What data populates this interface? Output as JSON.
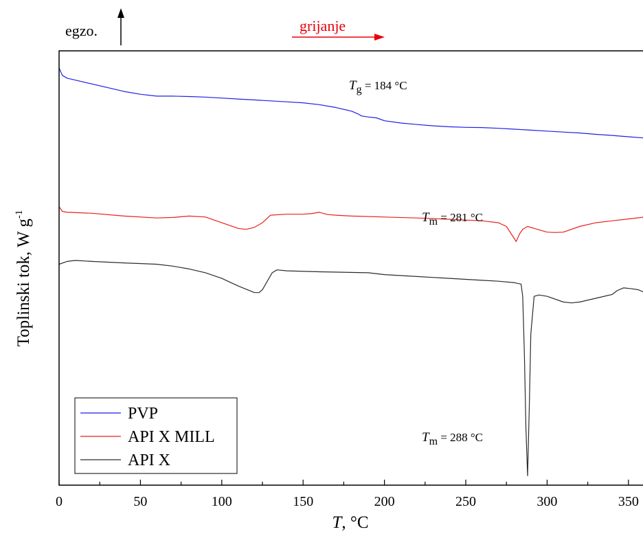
{
  "chart_data": {
    "type": "line",
    "xlabel_italic": "T",
    "xlabel_rest": ", °C",
    "ylabel": "Toplinski tok, W g",
    "ylabel_sup": "-1",
    "xlim": [
      0,
      360
    ],
    "xticks": [
      0,
      50,
      100,
      150,
      200,
      250,
      300,
      350
    ],
    "y_ticks_shown": false,
    "grid": false,
    "legend_position": "bottom-left",
    "annotations": {
      "exo": "egzo.",
      "heating": "grijanje",
      "tg_sym": "T",
      "tg_sub": "g",
      "tg_val": " = 184 °C",
      "tm1_sym": "T",
      "tm1_sub": "m",
      "tm1_val": " = 281 °C",
      "tm2_sym": "T",
      "tm2_sub": "m",
      "tm2_val": " = 288 °C"
    },
    "heating_color": "#e8000b",
    "series": [
      {
        "name": "PVP",
        "color": "#1f1fe6",
        "x": [
          0,
          2,
          5,
          10,
          20,
          30,
          40,
          50,
          60,
          70,
          80,
          90,
          100,
          110,
          120,
          130,
          140,
          150,
          160,
          170,
          180,
          184,
          186,
          190,
          195,
          200,
          210,
          220,
          230,
          240,
          250,
          260,
          270,
          280,
          290,
          300,
          310,
          320,
          330,
          340,
          350,
          360
        ],
        "y": [
          0.91,
          0.87,
          0.855,
          0.845,
          0.825,
          0.805,
          0.785,
          0.77,
          0.76,
          0.76,
          0.758,
          0.755,
          0.75,
          0.745,
          0.74,
          0.735,
          0.73,
          0.725,
          0.715,
          0.7,
          0.68,
          0.665,
          0.655,
          0.65,
          0.645,
          0.63,
          0.618,
          0.61,
          0.603,
          0.598,
          0.595,
          0.594,
          0.59,
          0.585,
          0.58,
          0.575,
          0.57,
          0.565,
          0.558,
          0.552,
          0.545,
          0.538
        ]
      },
      {
        "name": "API X MILL",
        "color": "#e8201a",
        "x": [
          0,
          2,
          5,
          20,
          40,
          60,
          70,
          80,
          90,
          100,
          110,
          115,
          120,
          125,
          130,
          140,
          150,
          155,
          160,
          165,
          170,
          180,
          200,
          220,
          240,
          260,
          270,
          275,
          278,
          281,
          283,
          285,
          288,
          292,
          300,
          305,
          310,
          320,
          330,
          340,
          350,
          360
        ],
        "y": [
          0.175,
          0.15,
          0.145,
          0.14,
          0.125,
          0.115,
          0.118,
          0.125,
          0.12,
          0.09,
          0.06,
          0.055,
          0.065,
          0.09,
          0.13,
          0.135,
          0.135,
          0.138,
          0.145,
          0.133,
          0.13,
          0.125,
          0.12,
          0.115,
          0.108,
          0.1,
          0.09,
          0.07,
          0.03,
          -0.01,
          0.03,
          0.055,
          0.07,
          0.06,
          0.04,
          0.038,
          0.04,
          0.07,
          0.09,
          0.1,
          0.11,
          0.12
        ]
      },
      {
        "name": "API X",
        "color": "#2b2b2b",
        "x": [
          0,
          5,
          10,
          20,
          40,
          60,
          70,
          80,
          90,
          100,
          110,
          120,
          123,
          125,
          128,
          131,
          134,
          140,
          160,
          190,
          200,
          220,
          240,
          260,
          270,
          280,
          284,
          285,
          286,
          287,
          288,
          289,
          290,
          292,
          295,
          300,
          310,
          315,
          320,
          330,
          340,
          343,
          347,
          352,
          356,
          360
        ],
        "y": [
          -0.13,
          -0.115,
          -0.11,
          -0.115,
          -0.123,
          -0.13,
          -0.14,
          -0.155,
          -0.175,
          -0.205,
          -0.245,
          -0.28,
          -0.28,
          -0.265,
          -0.22,
          -0.175,
          -0.16,
          -0.165,
          -0.17,
          -0.175,
          -0.185,
          -0.195,
          -0.205,
          -0.215,
          -0.22,
          -0.228,
          -0.235,
          -0.3,
          -0.6,
          -1.0,
          -1.25,
          -0.9,
          -0.5,
          -0.3,
          -0.293,
          -0.3,
          -0.33,
          -0.335,
          -0.33,
          -0.31,
          -0.29,
          -0.27,
          -0.255,
          -0.26,
          -0.265,
          -0.28
        ]
      }
    ]
  }
}
